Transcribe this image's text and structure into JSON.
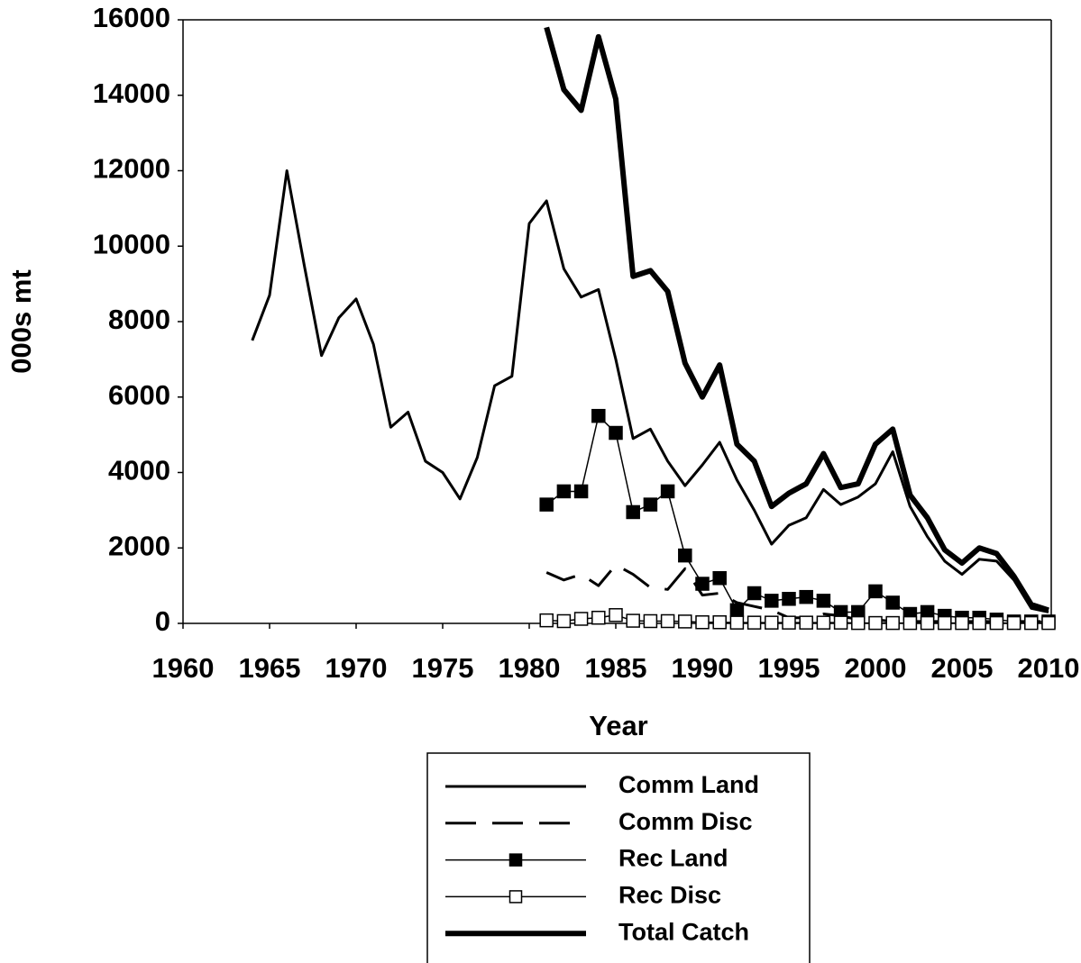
{
  "chart_data": {
    "type": "line",
    "x_label": "Year",
    "y_label": "000s mt",
    "xlim": [
      1960,
      2010
    ],
    "xticks": [
      1960,
      1965,
      1970,
      1975,
      1980,
      1985,
      1990,
      1995,
      2000,
      2005,
      2010
    ],
    "ylim": [
      0,
      16000
    ],
    "yticks": [
      0,
      2000,
      4000,
      6000,
      8000,
      10000,
      12000,
      14000,
      16000
    ],
    "grid": false,
    "legend": "bottom",
    "series": [
      {
        "name": "Comm Land",
        "color": "#000000",
        "line_width": 3,
        "dash": "none",
        "marker": "none",
        "x": [
          1964,
          1965,
          1966,
          1967,
          1968,
          1969,
          1970,
          1971,
          1972,
          1973,
          1974,
          1975,
          1976,
          1977,
          1978,
          1979,
          1980,
          1981,
          1982,
          1983,
          1984,
          1985,
          1986,
          1987,
          1988,
          1989,
          1990,
          1991,
          1992,
          1993,
          1994,
          1995,
          1996,
          1997,
          1998,
          1999,
          2000,
          2001,
          2002,
          2003,
          2004,
          2005,
          2006,
          2007,
          2008,
          2009,
          2010
        ],
        "values": [
          7500,
          8700,
          12000,
          9500,
          7100,
          8100,
          8600,
          7400,
          5200,
          5600,
          4300,
          4000,
          3300,
          4400,
          6300,
          6550,
          10600,
          11200,
          9400,
          8650,
          8850,
          7000,
          4900,
          5150,
          4300,
          3650,
          4200,
          4800,
          3800,
          3000,
          2100,
          2600,
          2800,
          3550,
          3150,
          3350,
          3700,
          4550,
          3100,
          2300,
          1650,
          1300,
          1700,
          1650,
          1150,
          400,
          300
        ]
      },
      {
        "name": "Comm Disc",
        "color": "#000000",
        "line_width": 3,
        "dash": "34 18",
        "marker": "none",
        "x": [
          1981,
          1982,
          1983,
          1984,
          1985,
          1986,
          1987,
          1988,
          1989,
          1990,
          1991,
          1992,
          1993,
          1994,
          1995,
          1996,
          1997,
          1998,
          1999,
          2000,
          2001,
          2002,
          2003,
          2004,
          2005,
          2006,
          2007,
          2008,
          2009,
          2010
        ],
        "values": [
          1350,
          1150,
          1300,
          1000,
          1550,
          1300,
          950,
          900,
          1450,
          750,
          800,
          550,
          450,
          350,
          150,
          150,
          250,
          200,
          100,
          100,
          50,
          50,
          50,
          50,
          50,
          50,
          50,
          50,
          50,
          50
        ]
      },
      {
        "name": "Rec Land",
        "color": "#000000",
        "line_width": 1.5,
        "dash": "none",
        "marker": "filled-square",
        "x": [
          1981,
          1982,
          1983,
          1984,
          1985,
          1986,
          1987,
          1988,
          1989,
          1990,
          1991,
          1992,
          1993,
          1994,
          1995,
          1996,
          1997,
          1998,
          1999,
          2000,
          2001,
          2002,
          2003,
          2004,
          2005,
          2006,
          2007,
          2008,
          2009,
          2010
        ],
        "values": [
          3150,
          3500,
          3500,
          5500,
          5050,
          2950,
          3150,
          3500,
          1800,
          1050,
          1200,
          350,
          800,
          600,
          650,
          700,
          600,
          300,
          300,
          850,
          550,
          250,
          300,
          200,
          150,
          150,
          100,
          50,
          50,
          50
        ]
      },
      {
        "name": "Rec Disc",
        "color": "#000000",
        "line_width": 1.5,
        "dash": "none",
        "marker": "open-square",
        "x": [
          1981,
          1982,
          1983,
          1984,
          1985,
          1986,
          1987,
          1988,
          1989,
          1990,
          1991,
          1992,
          1993,
          1994,
          1995,
          1996,
          1997,
          1998,
          1999,
          2000,
          2001,
          2002,
          2003,
          2004,
          2005,
          2006,
          2007,
          2008,
          2009,
          2010
        ],
        "values": [
          80,
          60,
          120,
          150,
          220,
          70,
          60,
          60,
          50,
          30,
          30,
          20,
          20,
          20,
          20,
          20,
          20,
          20,
          10,
          10,
          10,
          10,
          10,
          10,
          10,
          10,
          10,
          10,
          10,
          10
        ]
      },
      {
        "name": "Total Catch",
        "color": "#000000",
        "line_width": 6,
        "dash": "none",
        "marker": "none",
        "x": [
          1981,
          1982,
          1983,
          1984,
          1985,
          1986,
          1987,
          1988,
          1989,
          1990,
          1991,
          1992,
          1993,
          1994,
          1995,
          1996,
          1997,
          1998,
          1999,
          2000,
          2001,
          2002,
          2003,
          2004,
          2005,
          2006,
          2007,
          2008,
          2009,
          2010
        ],
        "values": [
          15800,
          14150,
          13600,
          15550,
          13900,
          9200,
          9350,
          8800,
          6900,
          6000,
          6850,
          4750,
          4300,
          3100,
          3450,
          3700,
          4500,
          3600,
          3700,
          4750,
          5150,
          3400,
          2800,
          1950,
          1600,
          2000,
          1850,
          1250,
          500,
          350
        ]
      }
    ]
  }
}
